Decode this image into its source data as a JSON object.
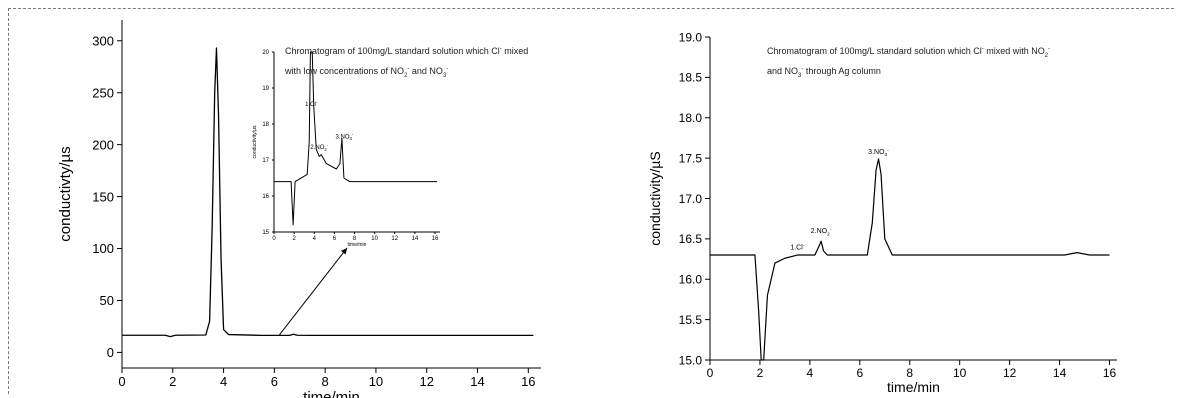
{
  "chart_data": [
    {
      "type": "line",
      "xlabel": "time/min",
      "ylabel": "conductivty/µs",
      "xlim": [
        0,
        16.5
      ],
      "ylim": [
        -15,
        320
      ],
      "xticks": [
        0,
        2,
        4,
        6,
        8,
        10,
        12,
        14,
        16
      ],
      "yticks": [
        0,
        50,
        100,
        150,
        200,
        250,
        300
      ],
      "annotation": {
        "line1": "Chromatogram of 100mg/L standard solution which Cl",
        "line1_sup": "-",
        "line1_tail": " mixed",
        "line2": "with low concentrations of NO",
        "line2_sub": "2",
        "line2_sup": "-",
        "line2_mid": " and NO",
        "line2_sub2": "3",
        "line2_sup2": "-"
      },
      "series": [
        {
          "x": [
            0,
            1.7,
            1.9,
            2.1,
            3.3,
            3.45,
            3.55,
            3.65,
            3.72,
            3.8,
            3.9,
            4.0,
            4.2,
            5.5,
            6.6,
            6.75,
            6.9,
            7.5,
            16.2
          ],
          "y": [
            16.5,
            16.5,
            15.2,
            16.5,
            16.8,
            30,
            120,
            250,
            293,
            230,
            90,
            22,
            17.2,
            16.4,
            16.4,
            17.5,
            16.5,
            16.4,
            16.4
          ]
        }
      ],
      "inset": {
        "xlabel": "time/min",
        "ylabel": "conductivity/µs",
        "xlim": [
          0,
          16.5
        ],
        "ylim": [
          15,
          20
        ],
        "xticks": [
          0,
          2,
          4,
          6,
          8,
          10,
          12,
          14,
          16
        ],
        "yticks": [
          15,
          16,
          17,
          18,
          19,
          20
        ],
        "peak_labels": [
          {
            "text": "1.Cl",
            "sup": "-",
            "x": 3.7,
            "y": 18.5
          },
          {
            "text": "2.NO",
            "sub": "2",
            "sup": "-",
            "x": 4.5,
            "y": 17.3
          },
          {
            "text": "3.NO",
            "sub": "3",
            "sup": "-",
            "x": 7.0,
            "y": 17.6
          }
        ],
        "series": [
          {
            "x": [
              0,
              1.7,
              1.9,
              2.1,
              3.3,
              3.5,
              3.62,
              3.7,
              3.8,
              3.95,
              4.2,
              4.5,
              4.7,
              5.2,
              6.2,
              6.55,
              6.75,
              6.95,
              7.5,
              16.2
            ],
            "y": [
              16.4,
              16.4,
              15.2,
              16.4,
              16.6,
              17.5,
              20.5,
              22,
              20.5,
              18.5,
              17.3,
              17.1,
              17.15,
              16.9,
              16.75,
              16.9,
              17.6,
              16.5,
              16.4,
              16.4
            ]
          }
        ]
      }
    },
    {
      "type": "line",
      "xlabel": "time/min",
      "ylabel": "conductivity/µS",
      "xlim": [
        0,
        16.3
      ],
      "ylim": [
        15.0,
        19.0
      ],
      "xticks": [
        0,
        2,
        4,
        6,
        8,
        10,
        12,
        14,
        16
      ],
      "yticks": [
        15.0,
        15.5,
        16.0,
        16.5,
        17.0,
        17.5,
        18.0,
        18.5,
        19.0
      ],
      "annotation": {
        "line1": "Chromatogram of 100mg/L standard solution which Cl",
        "line1_sup": "-",
        "line1_tail": " mixed with NO",
        "line1_sub": "2",
        "line1_sup2": "-",
        "line2": "and NO",
        "line2_sub": "3",
        "line2_sup": "-",
        "line2_tail": " through Ag column"
      },
      "peak_labels": [
        {
          "text": "1.Cl",
          "sup": "-",
          "x": 3.5,
          "y": 16.37
        },
        {
          "text": "2.NO",
          "sub": "2",
          "sup": "-",
          "x": 4.45,
          "y": 16.57
        },
        {
          "text": "3.NO",
          "sub": "3",
          "sup": "-",
          "x": 6.75,
          "y": 17.55
        }
      ],
      "series": [
        {
          "x": [
            0,
            1.8,
            1.95,
            2.05,
            2.15,
            2.3,
            2.6,
            3.0,
            3.5,
            3.8,
            4.2,
            4.35,
            4.45,
            4.55,
            4.7,
            6.3,
            6.5,
            6.65,
            6.75,
            6.85,
            7.0,
            7.3,
            14.2,
            14.7,
            15.2,
            16.0
          ],
          "y": [
            16.3,
            16.3,
            15.6,
            15.0,
            15.0,
            15.8,
            16.2,
            16.26,
            16.3,
            16.3,
            16.3,
            16.4,
            16.47,
            16.35,
            16.3,
            16.3,
            16.7,
            17.35,
            17.49,
            17.3,
            16.5,
            16.3,
            16.3,
            16.33,
            16.3,
            16.3
          ]
        }
      ]
    }
  ]
}
